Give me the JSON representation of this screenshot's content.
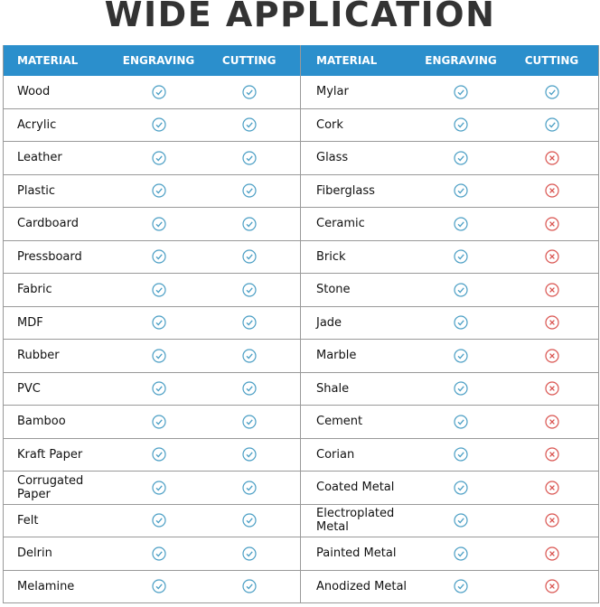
{
  "title": "WIDE APPLICATION",
  "colors": {
    "header_bg": "#2b8fcc",
    "check": "#4a9ec4",
    "cross": "#d9534f"
  },
  "headers": {
    "material": "MATERIAL",
    "engraving": "ENGRAVING",
    "cutting": "CUTTING"
  },
  "left": [
    {
      "material": "Wood",
      "engraving": "check",
      "cutting": "check"
    },
    {
      "material": "Acrylic",
      "engraving": "check",
      "cutting": "check"
    },
    {
      "material": "Leather",
      "engraving": "check",
      "cutting": "check"
    },
    {
      "material": "Plastic",
      "engraving": "check",
      "cutting": "check"
    },
    {
      "material": "Cardboard",
      "engraving": "check",
      "cutting": "check"
    },
    {
      "material": "Pressboard",
      "engraving": "check",
      "cutting": "check"
    },
    {
      "material": "Fabric",
      "engraving": "check",
      "cutting": "check"
    },
    {
      "material": "MDF",
      "engraving": "check",
      "cutting": "check"
    },
    {
      "material": "Rubber",
      "engraving": "check",
      "cutting": "check"
    },
    {
      "material": "PVC",
      "engraving": "check",
      "cutting": "check"
    },
    {
      "material": "Bamboo",
      "engraving": "check",
      "cutting": "check"
    },
    {
      "material": "Kraft Paper",
      "engraving": "check",
      "cutting": "check"
    },
    {
      "material": "Corrugated Paper",
      "engraving": "check",
      "cutting": "check"
    },
    {
      "material": "Felt",
      "engraving": "check",
      "cutting": "check"
    },
    {
      "material": "Delrin",
      "engraving": "check",
      "cutting": "check"
    },
    {
      "material": "Melamine",
      "engraving": "check",
      "cutting": "check"
    }
  ],
  "right": [
    {
      "material": "Mylar",
      "engraving": "check",
      "cutting": "check"
    },
    {
      "material": "Cork",
      "engraving": "check",
      "cutting": "check"
    },
    {
      "material": "Glass",
      "engraving": "check",
      "cutting": "cross"
    },
    {
      "material": "Fiberglass",
      "engraving": "check",
      "cutting": "cross"
    },
    {
      "material": "Ceramic",
      "engraving": "check",
      "cutting": "cross"
    },
    {
      "material": "Brick",
      "engraving": "check",
      "cutting": "cross"
    },
    {
      "material": "Stone",
      "engraving": "check",
      "cutting": "cross"
    },
    {
      "material": "Jade",
      "engraving": "check",
      "cutting": "cross"
    },
    {
      "material": "Marble",
      "engraving": "check",
      "cutting": "cross"
    },
    {
      "material": "Shale",
      "engraving": "check",
      "cutting": "cross"
    },
    {
      "material": "Cement",
      "engraving": "check",
      "cutting": "cross"
    },
    {
      "material": "Corian",
      "engraving": "check",
      "cutting": "cross"
    },
    {
      "material": "Coated Metal",
      "engraving": "check",
      "cutting": "cross"
    },
    {
      "material": "Electroplated Metal",
      "engraving": "check",
      "cutting": "cross"
    },
    {
      "material": "Painted Metal",
      "engraving": "check",
      "cutting": "cross"
    },
    {
      "material": "Anodized Metal",
      "engraving": "check",
      "cutting": "cross"
    }
  ]
}
